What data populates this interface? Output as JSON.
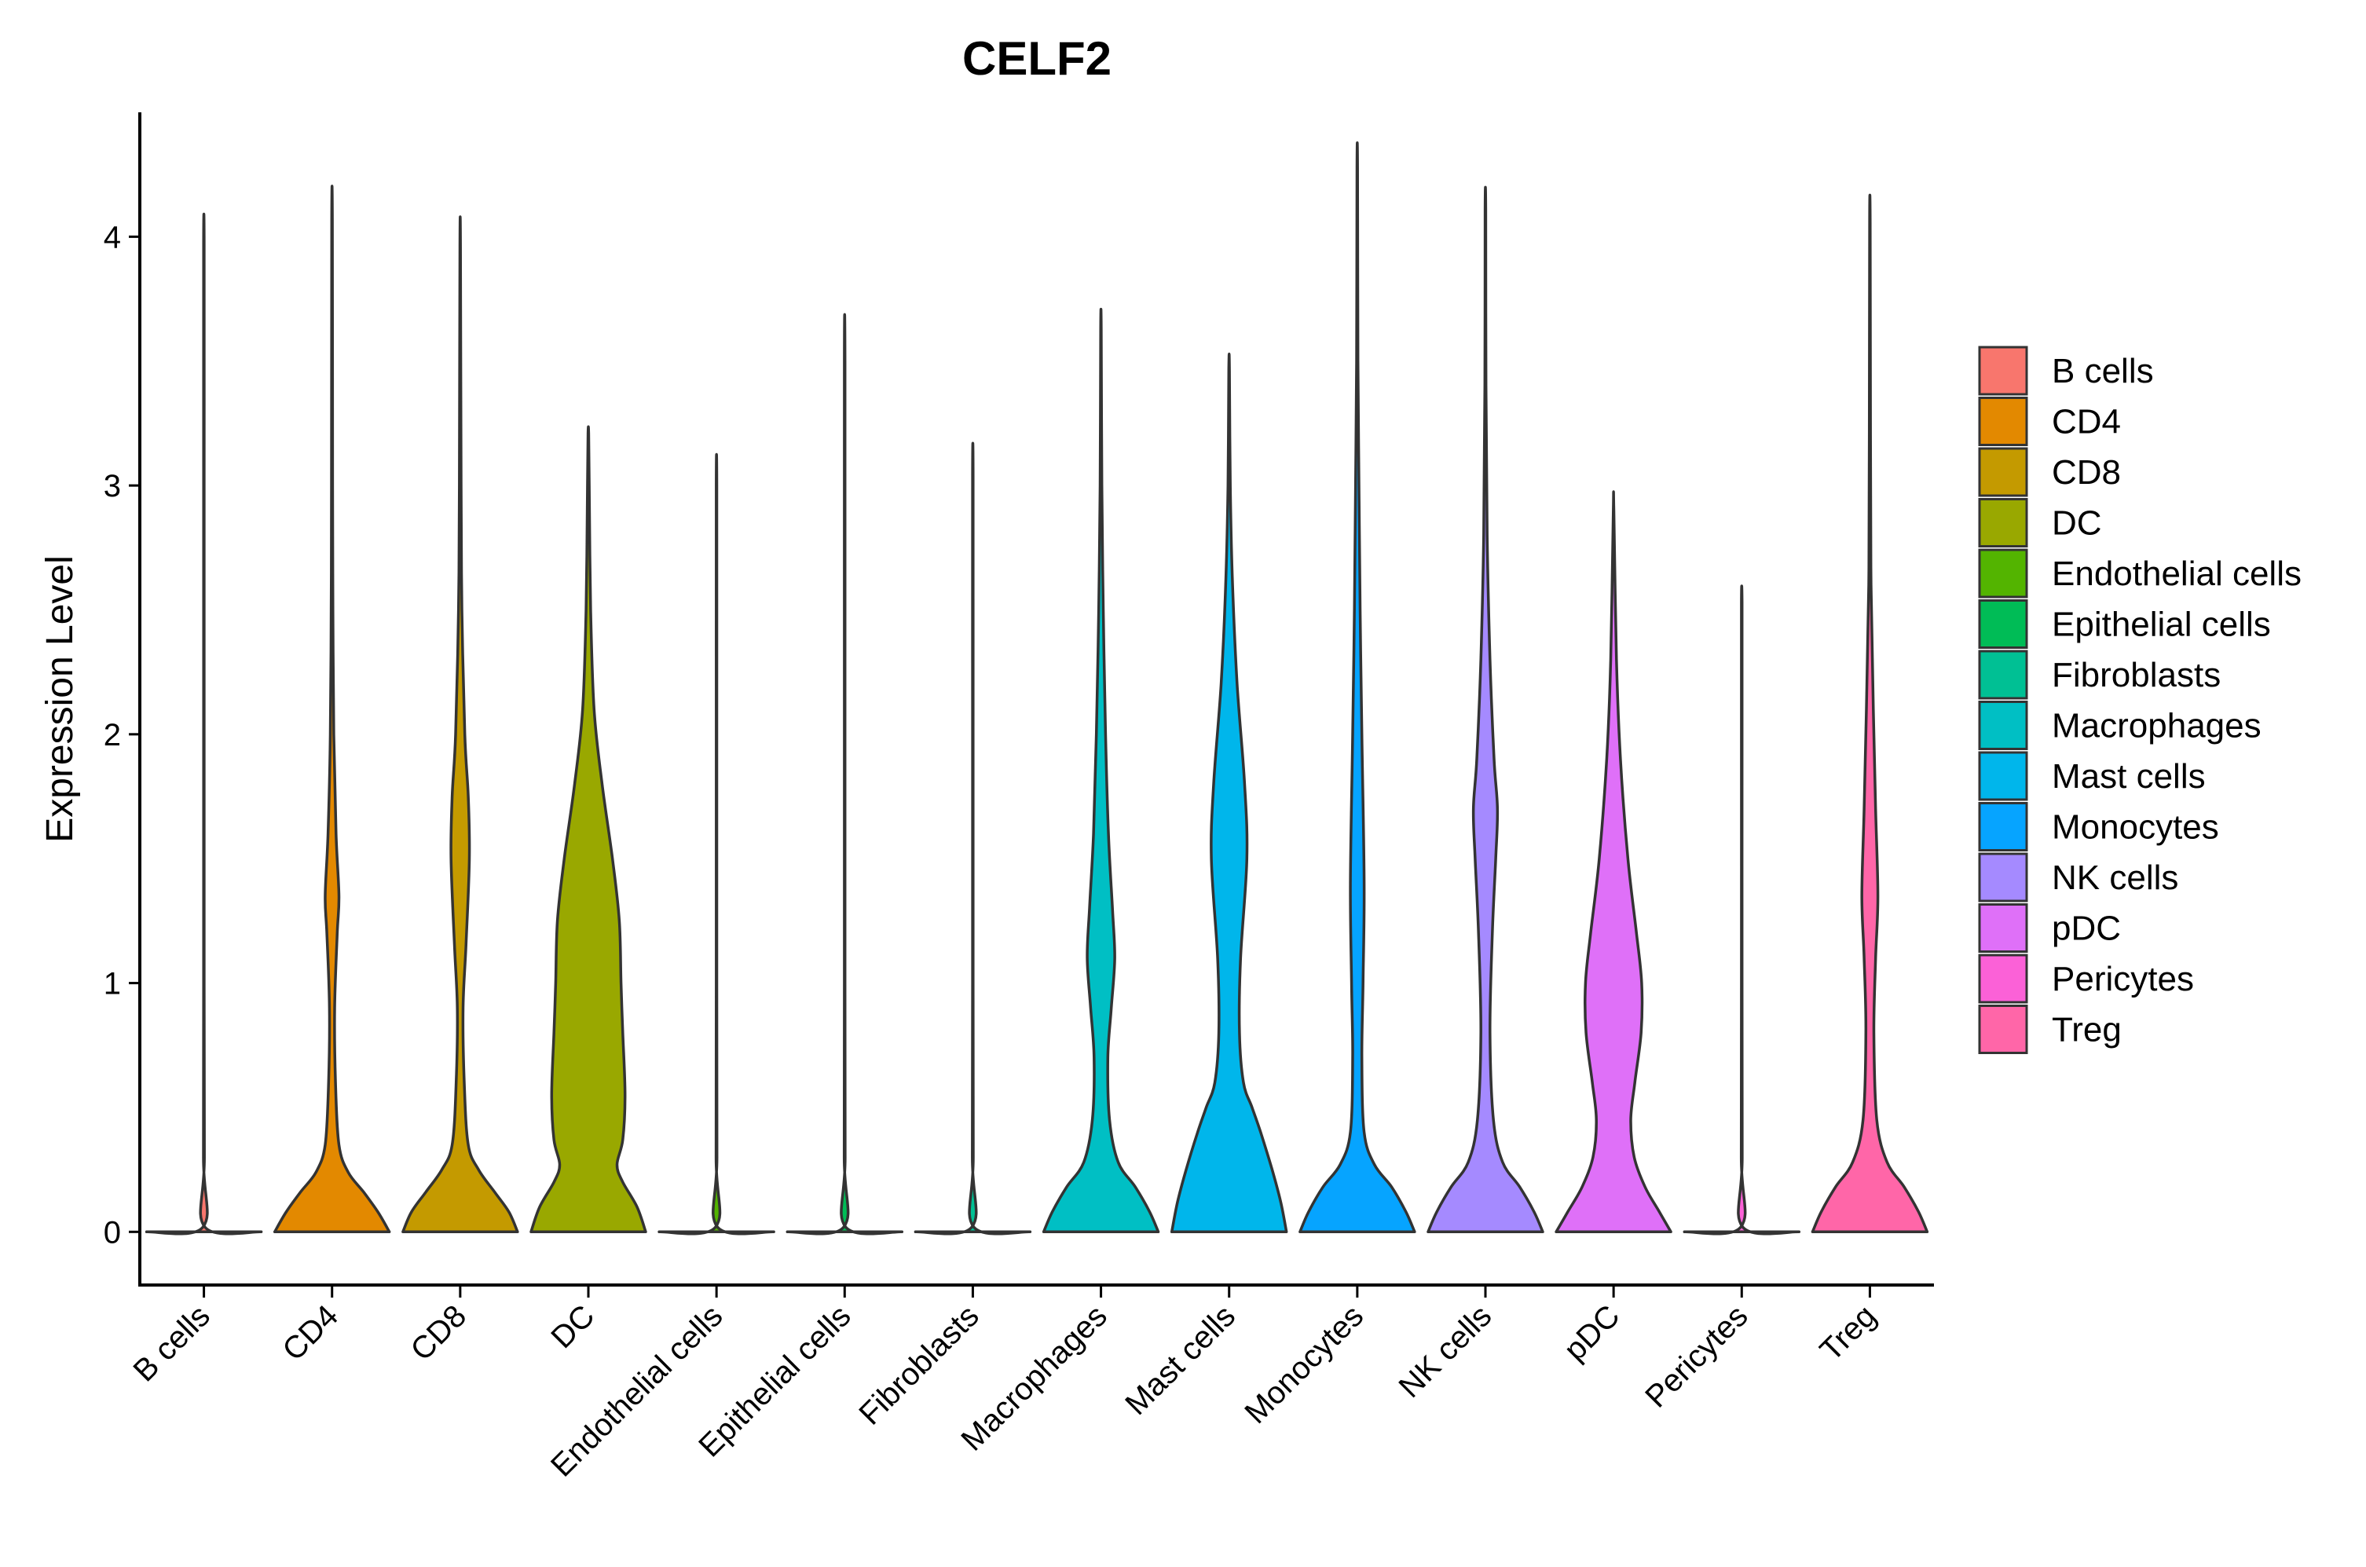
{
  "chart_data": {
    "type": "violin",
    "title": "CELF2",
    "xlabel": "",
    "ylabel": "Expression Level",
    "ylim": [
      -0.22,
      4.5
    ],
    "yticks": [
      0,
      1,
      2,
      3,
      4
    ],
    "legend_position": "right",
    "categories": [
      "B cells",
      "CD4",
      "CD8",
      "DC",
      "Endothelial cells",
      "Epithelial cells",
      "Fibroblasts",
      "Macrophages",
      "Mast cells",
      "Monocytes",
      "NK cells",
      "pDC",
      "Pericytes",
      "Treg"
    ],
    "colors": [
      "#F8766D",
      "#E38900",
      "#C49A00",
      "#99A800",
      "#53B400",
      "#00BC56",
      "#00C094",
      "#00BFC4",
      "#00B6EB",
      "#06A4FF",
      "#A58AFF",
      "#DF70F8",
      "#FB61D7",
      "#FF66A8"
    ],
    "max_values": [
      3.97,
      4.07,
      3.96,
      3.21,
      3.0,
      3.5,
      3.04,
      3.63,
      3.47,
      4.28,
      4.11,
      2.9,
      2.53,
      4.06
    ],
    "density": [
      [
        [
          0,
          1
        ],
        [
          0.02,
          0.015
        ],
        [
          0.3,
          0.008
        ],
        [
          1,
          0.005
        ],
        [
          2,
          0.005
        ],
        [
          3,
          0.005
        ],
        [
          3.97,
          0.005
        ]
      ],
      [
        [
          0,
          1
        ],
        [
          0.08,
          0.8
        ],
        [
          0.16,
          0.55
        ],
        [
          0.24,
          0.28
        ],
        [
          0.35,
          0.12
        ],
        [
          0.6,
          0.06
        ],
        [
          0.9,
          0.045
        ],
        [
          1.2,
          0.09
        ],
        [
          1.35,
          0.12
        ],
        [
          1.6,
          0.07
        ],
        [
          2.0,
          0.03
        ],
        [
          2.5,
          0.015
        ],
        [
          3.0,
          0.01
        ],
        [
          4.07,
          0.005
        ]
      ],
      [
        [
          0,
          1
        ],
        [
          0.08,
          0.85
        ],
        [
          0.16,
          0.6
        ],
        [
          0.25,
          0.32
        ],
        [
          0.35,
          0.14
        ],
        [
          0.6,
          0.07
        ],
        [
          0.9,
          0.05
        ],
        [
          1.15,
          0.1
        ],
        [
          1.5,
          0.16
        ],
        [
          1.75,
          0.14
        ],
        [
          2.0,
          0.08
        ],
        [
          2.5,
          0.03
        ],
        [
          3.0,
          0.015
        ],
        [
          3.96,
          0.005
        ]
      ],
      [
        [
          0,
          1
        ],
        [
          0.1,
          0.85
        ],
        [
          0.2,
          0.6
        ],
        [
          0.27,
          0.5
        ],
        [
          0.37,
          0.6
        ],
        [
          0.55,
          0.64
        ],
        [
          0.8,
          0.6
        ],
        [
          1.0,
          0.57
        ],
        [
          1.25,
          0.54
        ],
        [
          1.5,
          0.42
        ],
        [
          1.8,
          0.24
        ],
        [
          2.1,
          0.1
        ],
        [
          2.5,
          0.04
        ],
        [
          3.0,
          0.015
        ],
        [
          3.21,
          0.005
        ]
      ],
      [
        [
          0,
          1
        ],
        [
          0.02,
          0.015
        ],
        [
          0.3,
          0.008
        ],
        [
          1,
          0.005
        ],
        [
          2,
          0.005
        ],
        [
          3.0,
          0.005
        ]
      ],
      [
        [
          0,
          1
        ],
        [
          0.02,
          0.015
        ],
        [
          0.3,
          0.008
        ],
        [
          1,
          0.005
        ],
        [
          2,
          0.005
        ],
        [
          3.5,
          0.005
        ]
      ],
      [
        [
          0,
          1
        ],
        [
          0.02,
          0.015
        ],
        [
          0.3,
          0.008
        ],
        [
          1,
          0.005
        ],
        [
          2,
          0.005
        ],
        [
          3.04,
          0.005
        ]
      ],
      [
        [
          0,
          1
        ],
        [
          0.08,
          0.85
        ],
        [
          0.18,
          0.6
        ],
        [
          0.28,
          0.3
        ],
        [
          0.45,
          0.15
        ],
        [
          0.7,
          0.12
        ],
        [
          0.9,
          0.18
        ],
        [
          1.1,
          0.24
        ],
        [
          1.3,
          0.2
        ],
        [
          1.6,
          0.13
        ],
        [
          2.0,
          0.08
        ],
        [
          2.5,
          0.04
        ],
        [
          3.0,
          0.015
        ],
        [
          3.63,
          0.005
        ]
      ],
      [
        [
          0,
          1
        ],
        [
          0.12,
          0.9
        ],
        [
          0.25,
          0.75
        ],
        [
          0.4,
          0.55
        ],
        [
          0.5,
          0.4
        ],
        [
          0.6,
          0.25
        ],
        [
          0.8,
          0.18
        ],
        [
          1.1,
          0.2
        ],
        [
          1.5,
          0.31
        ],
        [
          1.8,
          0.27
        ],
        [
          2.2,
          0.14
        ],
        [
          2.6,
          0.06
        ],
        [
          3.0,
          0.02
        ],
        [
          3.47,
          0.005
        ]
      ],
      [
        [
          0,
          1
        ],
        [
          0.08,
          0.85
        ],
        [
          0.18,
          0.6
        ],
        [
          0.27,
          0.3
        ],
        [
          0.4,
          0.12
        ],
        [
          0.7,
          0.08
        ],
        [
          1.0,
          0.1
        ],
        [
          1.4,
          0.12
        ],
        [
          2.0,
          0.08
        ],
        [
          2.5,
          0.05
        ],
        [
          3.0,
          0.03
        ],
        [
          3.5,
          0.012
        ],
        [
          4.28,
          0.005
        ]
      ],
      [
        [
          0,
          1
        ],
        [
          0.08,
          0.85
        ],
        [
          0.18,
          0.6
        ],
        [
          0.28,
          0.3
        ],
        [
          0.45,
          0.14
        ],
        [
          0.8,
          0.08
        ],
        [
          1.2,
          0.12
        ],
        [
          1.5,
          0.18
        ],
        [
          1.7,
          0.21
        ],
        [
          1.9,
          0.15
        ],
        [
          2.3,
          0.08
        ],
        [
          2.8,
          0.03
        ],
        [
          3.4,
          0.01
        ],
        [
          4.11,
          0.005
        ]
      ],
      [
        [
          0,
          1
        ],
        [
          0.08,
          0.8
        ],
        [
          0.18,
          0.55
        ],
        [
          0.3,
          0.36
        ],
        [
          0.45,
          0.3
        ],
        [
          0.6,
          0.37
        ],
        [
          0.8,
          0.48
        ],
        [
          1.0,
          0.49
        ],
        [
          1.2,
          0.4
        ],
        [
          1.5,
          0.25
        ],
        [
          1.9,
          0.12
        ],
        [
          2.3,
          0.05
        ],
        [
          2.9,
          0.005
        ]
      ],
      [
        [
          0,
          1
        ],
        [
          0.02,
          0.015
        ],
        [
          0.3,
          0.008
        ],
        [
          1,
          0.005
        ],
        [
          2,
          0.005
        ],
        [
          2.53,
          0.005
        ]
      ],
      [
        [
          0,
          1
        ],
        [
          0.08,
          0.85
        ],
        [
          0.18,
          0.6
        ],
        [
          0.28,
          0.3
        ],
        [
          0.45,
          0.12
        ],
        [
          0.8,
          0.07
        ],
        [
          1.1,
          0.1
        ],
        [
          1.35,
          0.14
        ],
        [
          1.7,
          0.1
        ],
        [
          2.1,
          0.06
        ],
        [
          2.6,
          0.02
        ],
        [
          3.2,
          0.01
        ],
        [
          4.06,
          0.005
        ]
      ]
    ]
  }
}
